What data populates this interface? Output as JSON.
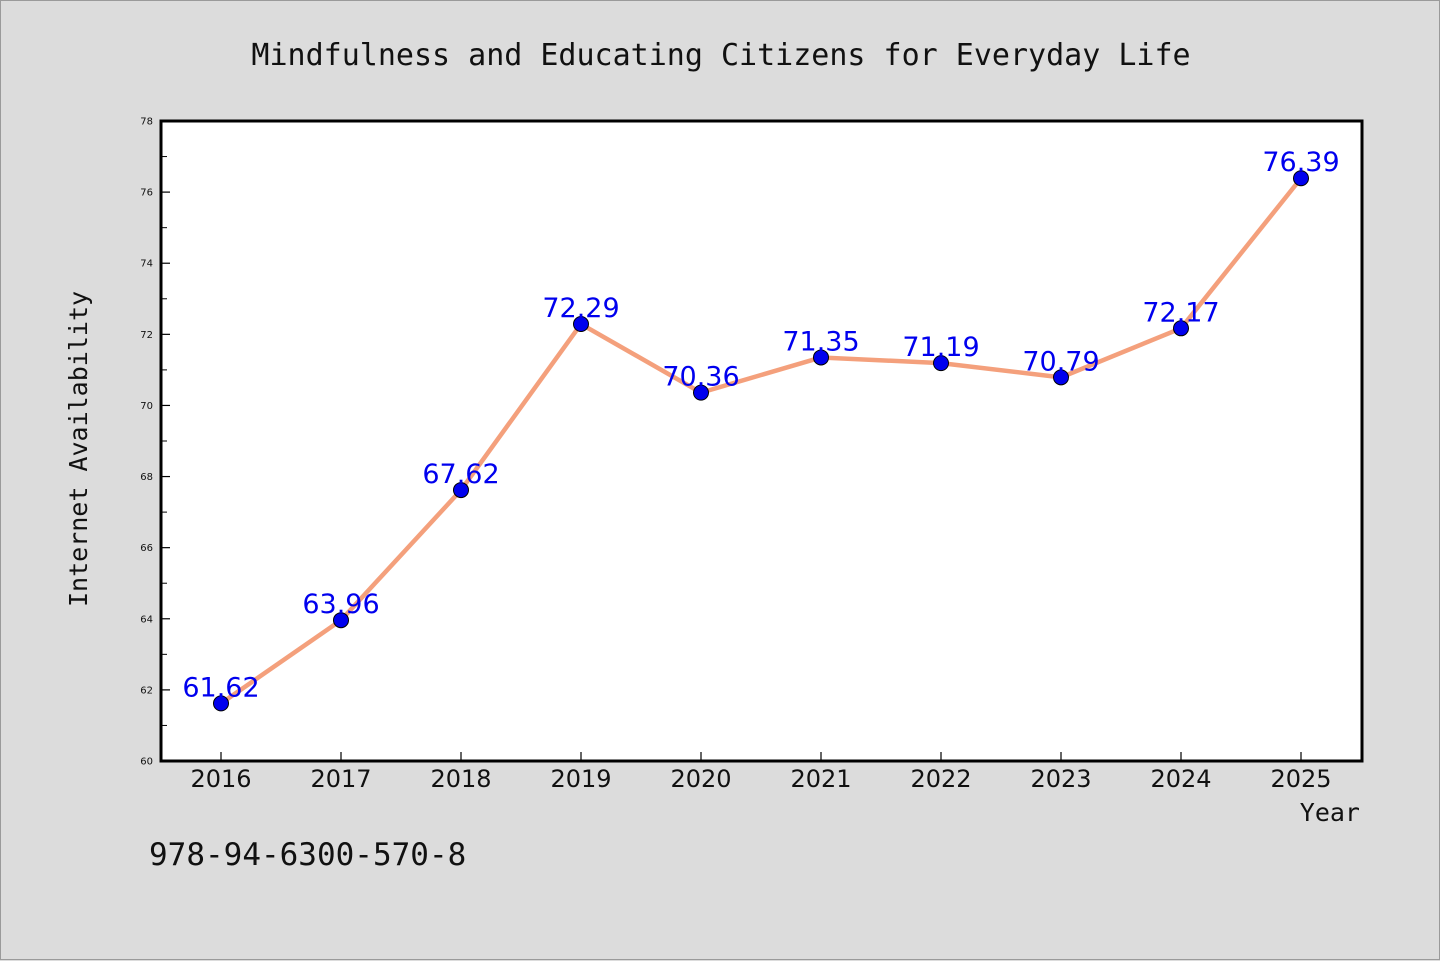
{
  "chart_data": {
    "type": "line",
    "title": "Mindfulness and Educating Citizens for Everyday Life",
    "xlabel": "Year",
    "ylabel": "Internet Availability",
    "x": [
      "2016",
      "2017",
      "2018",
      "2019",
      "2020",
      "2021",
      "2022",
      "2023",
      "2024",
      "2025"
    ],
    "series": [
      {
        "values": [
          61.62,
          63.96,
          67.62,
          72.29,
          70.36,
          71.35,
          71.19,
          70.79,
          72.17,
          76.39
        ],
        "labels": [
          "61.62",
          "63.96",
          "67.62",
          "72.29",
          "70.36",
          "71.35",
          "71.19",
          "70.79",
          "72.17",
          "76.39"
        ]
      }
    ],
    "ylim": [
      60,
      78
    ],
    "yticks": [
      "60",
      "62",
      "64",
      "66",
      "68",
      "70",
      "72",
      "74",
      "76",
      "78"
    ],
    "grid": false,
    "line_color": "#f4a07c",
    "marker_color": "#0000ee",
    "label_color": "#0000ee"
  },
  "footer": {
    "isbn": "978-94-6300-570-8"
  }
}
